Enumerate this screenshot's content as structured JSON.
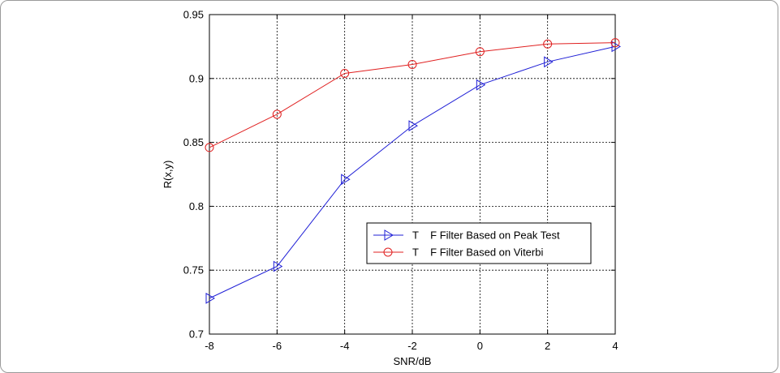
{
  "chart_data": {
    "type": "line",
    "xlabel": "SNR/dB",
    "ylabel": "R(x,y)",
    "xlim": [
      -8,
      4
    ],
    "ylim": [
      0.7,
      0.95
    ],
    "x_ticks": [
      "-8",
      "-6",
      "-4",
      "-2",
      "0",
      "2",
      "4"
    ],
    "y_ticks": [
      "0.7",
      "0.75",
      "0.8",
      "0.85",
      "0.9",
      "0.95"
    ],
    "grid": true,
    "legend_position": "lower-right",
    "x": [
      -8,
      -6,
      -4,
      -2,
      0,
      2,
      4
    ],
    "series": [
      {
        "name": "T    F Filter Based on Peak Test",
        "color": "#1f1fd6",
        "marker": "triangle-right",
        "values": [
          0.728,
          0.753,
          0.821,
          0.863,
          0.895,
          0.913,
          0.925
        ]
      },
      {
        "name": "T    F Filter Based on Viterbi",
        "color": "#e02020",
        "marker": "circle",
        "values": [
          0.846,
          0.872,
          0.904,
          0.911,
          0.921,
          0.927,
          0.928
        ]
      }
    ]
  }
}
